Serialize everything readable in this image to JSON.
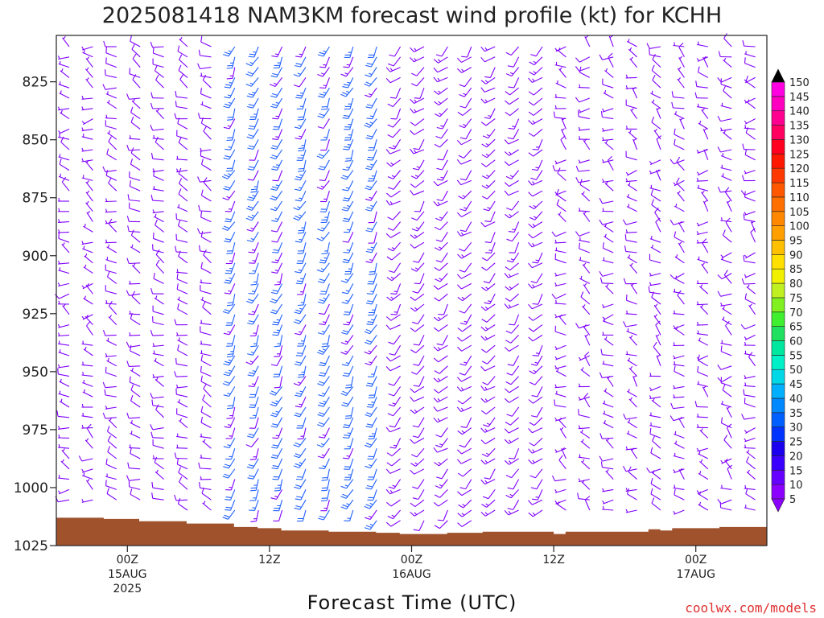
{
  "title": "2025081418 NAM3KM forecast wind profile (kt) for KCHH",
  "credit": "coolwx.com/models",
  "colors": {
    "terrain": "#a0522d",
    "barb_light": "#8000ff",
    "barb_strong": "#2060ff"
  },
  "chart_data": {
    "type": "wind-barb-time-height",
    "title": "2025081418 NAM3KM forecast wind profile (kt) for KCHH",
    "xlabel": "Forecast Time (UTC)",
    "ylabel": "",
    "x_ticks": [
      {
        "line1": "00Z",
        "line2": "15AUG",
        "line3": "2025",
        "hours": 6
      },
      {
        "line1": "12Z",
        "line2": "",
        "line3": "",
        "hours": 18
      },
      {
        "line1": "00Z",
        "line2": "16AUG",
        "line3": "",
        "hours": 30
      },
      {
        "line1": "12Z",
        "line2": "",
        "line3": "",
        "hours": 42
      },
      {
        "line1": "00Z",
        "line2": "17AUG",
        "line3": "",
        "hours": 54
      }
    ],
    "xlim_hours": [
      0,
      60
    ],
    "y_ticks": [
      825,
      850,
      875,
      900,
      925,
      950,
      975,
      1000,
      1025
    ],
    "ylim_hpa": [
      1025,
      805
    ],
    "units": "kt",
    "colorbar": {
      "levels": [
        5,
        10,
        15,
        20,
        25,
        30,
        35,
        40,
        45,
        50,
        55,
        60,
        65,
        70,
        75,
        80,
        85,
        90,
        95,
        100,
        105,
        110,
        115,
        120,
        125,
        130,
        135,
        140,
        145,
        150
      ],
      "colors": [
        "#8c00ff",
        "#6600ff",
        "#3a00ff",
        "#1a00ee",
        "#0033ff",
        "#0060ff",
        "#0088ff",
        "#00b0ff",
        "#00d8e8",
        "#00f0c8",
        "#00e8a0",
        "#20e060",
        "#40ef30",
        "#80f020",
        "#c0f020",
        "#f0f000",
        "#ffe000",
        "#ffc000",
        "#ffa000",
        "#ff8800",
        "#ff7000",
        "#ff5800",
        "#ff3800",
        "#ff1800",
        "#ff0020",
        "#ff0060",
        "#ff0090",
        "#ff00c0",
        "#ff00e0"
      ]
    },
    "surface_pressure": [
      {
        "t": 0,
        "p": 1013
      },
      {
        "t": 4,
        "p": 1013.5
      },
      {
        "t": 7,
        "p": 1014.5
      },
      {
        "t": 11,
        "p": 1015.5
      },
      {
        "t": 15,
        "p": 1017
      },
      {
        "t": 17,
        "p": 1017.5
      },
      {
        "t": 19,
        "p": 1018.5
      },
      {
        "t": 23,
        "p": 1019
      },
      {
        "t": 27,
        "p": 1019.5
      },
      {
        "t": 29,
        "p": 1020
      },
      {
        "t": 33,
        "p": 1019.5
      },
      {
        "t": 36,
        "p": 1019
      },
      {
        "t": 41,
        "p": 1019
      },
      {
        "t": 42,
        "p": 1020
      },
      {
        "t": 43,
        "p": 1019
      },
      {
        "t": 45,
        "p": 1019
      },
      {
        "t": 50,
        "p": 1018
      },
      {
        "t": 51,
        "p": 1018.5
      },
      {
        "t": 52,
        "p": 1017.5
      },
      {
        "t": 56,
        "p": 1017
      },
      {
        "t": 60,
        "p": 1016.5
      }
    ],
    "wind_field": [
      {
        "t_start": 0,
        "t_end": 5,
        "p_top": 805,
        "p_bottom": 1010,
        "speed_kt": [
          3,
          8
        ],
        "dir_deg": [
          240,
          330
        ]
      },
      {
        "t_start": 5,
        "t_end": 14,
        "p_top": 805,
        "p_bottom": 1012,
        "speed_kt": [
          5,
          12
        ],
        "dir_deg": [
          260,
          320
        ]
      },
      {
        "t_start": 14,
        "t_end": 28,
        "p_top": 805,
        "p_bottom": 1015,
        "speed_kt": [
          12,
          25
        ],
        "dir_deg": [
          190,
          220
        ]
      },
      {
        "t_start": 28,
        "t_end": 42,
        "p_top": 805,
        "p_bottom": 1018,
        "speed_kt": [
          8,
          15
        ],
        "dir_deg": [
          200,
          250
        ]
      },
      {
        "t_start": 42,
        "t_end": 60,
        "p_top": 805,
        "p_bottom": 1017,
        "speed_kt": [
          3,
          10
        ],
        "dir_deg": [
          240,
          340
        ]
      }
    ]
  }
}
